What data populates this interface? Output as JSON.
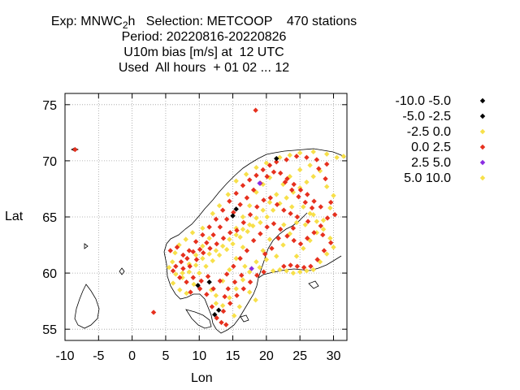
{
  "title": {
    "line1_pre": "Exp: MNWC",
    "line1_sub": "2",
    "line1_post": "h   Selection: METCOOP    470 stations",
    "line2": "Period: 20220816-20220826",
    "line3": "U10m bias [m/s] at  12 UTC",
    "line4": "Used  All hours  + 01 02 ... 12"
  },
  "chart_data": {
    "type": "scatter",
    "title": "U10m bias [m/s] at  12 UTC",
    "xlabel": "Lon",
    "ylabel": "Lat",
    "xlim": [
      -10,
      32
    ],
    "ylim": [
      54,
      76
    ],
    "xticks": [
      -10,
      -5,
      0,
      5,
      10,
      15,
      20,
      25,
      30
    ],
    "yticks": [
      55,
      60,
      65,
      70,
      75
    ],
    "grid": true,
    "legend_position": "top-right",
    "series": [
      {
        "name": "-10.0 -5.0",
        "color": "#000000",
        "points": []
      },
      {
        "name": "-5.0 -2.5",
        "color": "#000000",
        "points": [
          [
            15.0,
            65.1
          ],
          [
            15.5,
            65.7
          ],
          [
            12.9,
            56.7
          ],
          [
            12.3,
            56.3
          ],
          [
            9.8,
            58.9
          ],
          [
            11.5,
            59.2
          ],
          [
            21.5,
            70.2
          ]
        ]
      },
      {
        "name": "-2.5 0.0",
        "color": "#f7e04a",
        "points": [
          [
            5.5,
            60.5
          ],
          [
            6.0,
            61.0
          ],
          [
            6.4,
            61.8
          ],
          [
            7.0,
            62.5
          ],
          [
            8.0,
            63.0
          ],
          [
            9.0,
            63.6
          ],
          [
            10.5,
            64.0
          ],
          [
            12.0,
            65.3
          ],
          [
            13.0,
            66.0
          ],
          [
            14.3,
            67.0
          ],
          [
            15.5,
            68.2
          ],
          [
            17.0,
            68.8
          ],
          [
            18.5,
            69.4
          ],
          [
            20.0,
            69.8
          ],
          [
            22.0,
            70.3
          ],
          [
            23.5,
            70.5
          ],
          [
            25.0,
            70.7
          ],
          [
            27.0,
            70.8
          ],
          [
            29.0,
            70.6
          ],
          [
            30.5,
            70.3
          ],
          [
            31.5,
            70.4
          ],
          [
            6.1,
            59.1
          ],
          [
            7.1,
            58.5
          ],
          [
            8.1,
            58.2
          ],
          [
            9.2,
            59.0
          ],
          [
            10.0,
            60.0
          ],
          [
            11.0,
            60.6
          ],
          [
            12.0,
            61.1
          ],
          [
            13.0,
            61.6
          ],
          [
            14.1,
            62.1
          ],
          [
            15.0,
            62.6
          ],
          [
            16.1,
            63.2
          ],
          [
            17.2,
            63.7
          ],
          [
            18.0,
            64.2
          ],
          [
            19.1,
            64.5
          ],
          [
            20.1,
            65.0
          ],
          [
            21.0,
            65.6
          ],
          [
            22.0,
            66.2
          ],
          [
            23.0,
            66.7
          ],
          [
            24.0,
            67.2
          ],
          [
            25.0,
            67.6
          ],
          [
            26.0,
            68.1
          ],
          [
            27.0,
            68.6
          ],
          [
            21.0,
            60.2
          ],
          [
            22.0,
            60.3
          ],
          [
            23.0,
            60.2
          ],
          [
            24.0,
            60.0
          ],
          [
            25.0,
            60.1
          ],
          [
            26.0,
            60.2
          ],
          [
            27.0,
            60.3
          ],
          [
            28.0,
            61.0
          ],
          [
            29.0,
            61.7
          ],
          [
            30.0,
            62.3
          ],
          [
            29.5,
            63.1
          ],
          [
            28.5,
            63.9
          ],
          [
            27.5,
            64.6
          ],
          [
            26.5,
            65.3
          ],
          [
            25.5,
            65.9
          ],
          [
            24.5,
            64.5
          ],
          [
            23.5,
            63.5
          ],
          [
            22.5,
            62.5
          ],
          [
            21.5,
            61.5
          ],
          [
            20.5,
            63.0
          ],
          [
            19.5,
            62.0
          ],
          [
            18.5,
            61.0
          ],
          [
            17.5,
            60.1
          ],
          [
            16.5,
            59.4
          ],
          [
            15.5,
            58.6
          ],
          [
            14.5,
            57.8
          ],
          [
            13.5,
            57.1
          ],
          [
            12.5,
            58.0
          ],
          [
            13.5,
            59.3
          ],
          [
            14.5,
            60.3
          ],
          [
            15.5,
            61.3
          ],
          [
            16.5,
            62.3
          ],
          [
            17.5,
            66.0
          ],
          [
            18.5,
            67.2
          ],
          [
            19.5,
            67.9
          ],
          [
            20.5,
            68.5
          ],
          [
            16.5,
            65.0
          ],
          [
            15.5,
            64.0
          ],
          [
            11.5,
            63.1
          ],
          [
            10.5,
            62.4
          ],
          [
            9.5,
            61.6
          ],
          [
            8.5,
            60.8
          ],
          [
            7.5,
            60.0
          ],
          [
            25.5,
            62.2
          ],
          [
            24.5,
            61.5
          ],
          [
            26.5,
            62.9
          ],
          [
            27.5,
            63.6
          ],
          [
            28.5,
            64.7
          ],
          [
            29.5,
            65.8
          ],
          [
            30.0,
            66.9
          ],
          [
            29.0,
            67.7
          ],
          [
            28.0,
            69.1
          ],
          [
            26.5,
            69.6
          ],
          [
            25.0,
            69.2
          ],
          [
            23.5,
            68.6
          ],
          [
            22.5,
            67.9
          ],
          [
            21.5,
            67.0
          ],
          [
            20.5,
            66.3
          ],
          [
            19.5,
            65.6
          ],
          [
            18.5,
            64.9
          ],
          [
            17.5,
            64.3
          ],
          [
            16.5,
            63.9
          ],
          [
            15.5,
            63.4
          ],
          [
            14.5,
            63.0
          ],
          [
            13.5,
            62.4
          ],
          [
            12.5,
            62.0
          ],
          [
            11.5,
            61.7
          ],
          [
            10.5,
            61.3
          ],
          [
            9.5,
            60.7
          ],
          [
            8.5,
            60.1
          ],
          [
            7.5,
            59.6
          ],
          [
            6.5,
            59.9
          ],
          [
            12.5,
            57.3
          ],
          [
            11.8,
            58.5
          ],
          [
            16.0,
            57.0
          ],
          [
            15.2,
            56.2
          ],
          [
            18.4,
            57.6
          ],
          [
            17.5,
            58.3
          ],
          [
            16.8,
            60.6
          ],
          [
            19.0,
            60.5
          ],
          [
            20.0,
            61.2
          ],
          [
            22.6,
            64.3
          ],
          [
            23.8,
            65.9
          ],
          [
            25.8,
            64.3
          ],
          [
            27.0,
            65.2
          ]
        ]
      },
      {
        "name": "0.0 2.5",
        "color": "#e6301e",
        "points": [
          [
            -8.5,
            71.0
          ],
          [
            18.4,
            74.5
          ],
          [
            3.2,
            56.5
          ],
          [
            5.7,
            62.0
          ],
          [
            6.7,
            62.3
          ],
          [
            7.6,
            61.6
          ],
          [
            8.5,
            62.0
          ],
          [
            9.5,
            62.8
          ],
          [
            10.5,
            63.4
          ],
          [
            11.5,
            64.1
          ],
          [
            12.5,
            64.8
          ],
          [
            13.5,
            65.6
          ],
          [
            14.5,
            66.4
          ],
          [
            15.5,
            67.1
          ],
          [
            16.5,
            67.8
          ],
          [
            17.5,
            68.3
          ],
          [
            18.5,
            68.7
          ],
          [
            19.5,
            69.2
          ],
          [
            20.5,
            69.6
          ],
          [
            21.5,
            69.9
          ],
          [
            23.0,
            70.1
          ],
          [
            24.5,
            70.4
          ],
          [
            26.0,
            70.3
          ],
          [
            27.5,
            70.1
          ],
          [
            29.0,
            69.7
          ],
          [
            6.5,
            60.6
          ],
          [
            7.3,
            61.0
          ],
          [
            8.2,
            61.3
          ],
          [
            9.1,
            61.9
          ],
          [
            10.1,
            62.1
          ],
          [
            11.1,
            62.7
          ],
          [
            12.1,
            63.4
          ],
          [
            13.1,
            64.1
          ],
          [
            14.1,
            64.8
          ],
          [
            15.1,
            65.4
          ],
          [
            16.1,
            66.1
          ],
          [
            17.1,
            66.7
          ],
          [
            18.1,
            67.4
          ],
          [
            19.1,
            68.0
          ],
          [
            20.1,
            68.6
          ],
          [
            21.1,
            69.0
          ],
          [
            22.1,
            68.9
          ],
          [
            23.1,
            68.4
          ],
          [
            24.1,
            67.9
          ],
          [
            25.1,
            67.4
          ],
          [
            26.1,
            67.0
          ],
          [
            27.1,
            66.4
          ],
          [
            28.1,
            65.9
          ],
          [
            29.1,
            64.9
          ],
          [
            28.1,
            64.2
          ],
          [
            27.1,
            63.6
          ],
          [
            26.1,
            63.1
          ],
          [
            25.1,
            62.6
          ],
          [
            24.1,
            62.9
          ],
          [
            23.1,
            63.3
          ],
          [
            22.1,
            63.9
          ],
          [
            21.1,
            64.4
          ],
          [
            20.1,
            64.1
          ],
          [
            19.1,
            63.5
          ],
          [
            18.1,
            62.9
          ],
          [
            17.1,
            62.0
          ],
          [
            16.1,
            61.3
          ],
          [
            15.1,
            60.6
          ],
          [
            14.1,
            59.9
          ],
          [
            13.1,
            59.3
          ],
          [
            12.1,
            58.6
          ],
          [
            11.1,
            58.1
          ],
          [
            10.1,
            58.6
          ],
          [
            9.1,
            59.6
          ],
          [
            8.1,
            59.2
          ],
          [
            7.1,
            59.6
          ],
          [
            6.1,
            60.2
          ],
          [
            12.6,
            56.0
          ],
          [
            13.6,
            56.6
          ],
          [
            14.6,
            57.3
          ],
          [
            15.6,
            58.0
          ],
          [
            16.6,
            58.6
          ],
          [
            17.6,
            59.2
          ],
          [
            18.6,
            59.8
          ],
          [
            19.6,
            60.1
          ],
          [
            14.0,
            55.4
          ],
          [
            13.3,
            55.6
          ],
          [
            11.9,
            57.0
          ],
          [
            22.6,
            60.6
          ],
          [
            23.6,
            60.7
          ],
          [
            24.6,
            60.6
          ],
          [
            25.6,
            60.5
          ],
          [
            26.6,
            60.6
          ],
          [
            27.6,
            61.2
          ],
          [
            28.6,
            62.0
          ],
          [
            29.6,
            62.7
          ],
          [
            28.4,
            63.4
          ],
          [
            24.6,
            65.0
          ],
          [
            23.6,
            65.3
          ],
          [
            22.6,
            65.6
          ],
          [
            21.6,
            66.1
          ],
          [
            20.6,
            66.7
          ],
          [
            19.6,
            66.5
          ],
          [
            18.6,
            65.9
          ],
          [
            17.6,
            65.2
          ],
          [
            16.6,
            64.5
          ],
          [
            15.6,
            63.8
          ],
          [
            14.6,
            63.6
          ],
          [
            13.6,
            63.1
          ],
          [
            12.6,
            62.6
          ],
          [
            11.6,
            62.2
          ],
          [
            10.6,
            61.8
          ],
          [
            9.6,
            61.2
          ],
          [
            8.6,
            60.6
          ],
          [
            7.6,
            60.4
          ],
          [
            26.8,
            65.8
          ],
          [
            25.8,
            66.3
          ],
          [
            24.8,
            66.8
          ],
          [
            23.8,
            67.4
          ],
          [
            22.8,
            68.1
          ],
          [
            29.6,
            66.3
          ],
          [
            30.2,
            65.2
          ],
          [
            28.8,
            68.4
          ],
          [
            27.8,
            69.3
          ],
          [
            20.8,
            62.2
          ],
          [
            19.8,
            61.7
          ],
          [
            21.8,
            63.1
          ],
          [
            16.3,
            59.8
          ],
          [
            14.3,
            58.6
          ],
          [
            15.3,
            59.2
          ],
          [
            13.8,
            57.9
          ],
          [
            11.3,
            59.7
          ],
          [
            10.3,
            59.3
          ],
          [
            8.7,
            58.3
          ],
          [
            24.0,
            64.0
          ],
          [
            26.2,
            64.6
          ]
        ]
      },
      {
        "name": "2.5 5.0",
        "color": "#8a2be2",
        "points": [
          [
            17.8,
            60.4
          ],
          [
            19.0,
            68.0
          ]
        ]
      },
      {
        "name": "5.0 10.0",
        "color": "#f7e04a",
        "points": []
      }
    ]
  }
}
